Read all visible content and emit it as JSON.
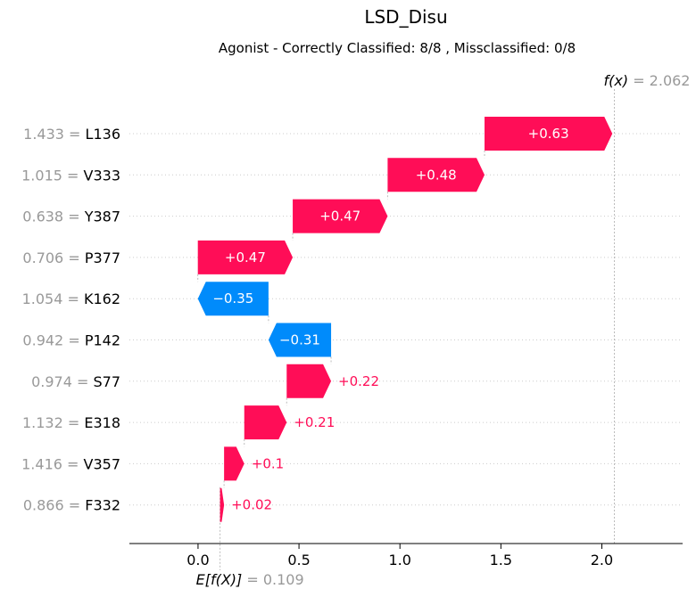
{
  "chart_data": {
    "type": "waterfall",
    "title": "LSD_Disu",
    "subtitle": "Agonist - Correctly Classified: 8/8 , Missclassified: 0/8",
    "base_value": 0.109,
    "base_value_label": "E[f(X)]",
    "base_value_text": "= 0.109",
    "output_value": 2.062,
    "output_value_label": "f(x)",
    "output_value_text": "= 2.062",
    "xlim": [
      -0.34,
      2.4
    ],
    "xticks": [
      0.0,
      0.5,
      1.0,
      1.5,
      2.0
    ],
    "xtick_labels": [
      "0.0",
      "0.5",
      "1.0",
      "1.5",
      "2.0"
    ],
    "features": [
      {
        "value": "1.433 =",
        "name": "L136",
        "contribution": 0.633,
        "label": "+0.63"
      },
      {
        "value": "1.015 =",
        "name": "V333",
        "contribution": 0.48,
        "label": "+0.48"
      },
      {
        "value": "0.638 =",
        "name": "Y387",
        "contribution": 0.47,
        "label": "+0.47"
      },
      {
        "value": "0.706 =",
        "name": "P377",
        "contribution": 0.47,
        "label": "+0.47"
      },
      {
        "value": "1.054 =",
        "name": "K162",
        "contribution": -0.35,
        "label": "−0.35"
      },
      {
        "value": "0.942 =",
        "name": "P142",
        "contribution": -0.31,
        "label": "−0.31"
      },
      {
        "value": "0.974 =",
        "name": "S77",
        "contribution": 0.22,
        "label": "+0.22"
      },
      {
        "value": "1.132 =",
        "name": "E318",
        "contribution": 0.21,
        "label": "+0.21"
      },
      {
        "value": "1.416 =",
        "name": "V357",
        "contribution": 0.1,
        "label": "+0.1"
      },
      {
        "value": "0.866 =",
        "name": "F332",
        "contribution": 0.02,
        "label": "+0.02"
      }
    ],
    "colors": {
      "positive": "#ff0d57",
      "negative": "#008bfb",
      "gridline": "#cccccc",
      "axis": "#000000"
    }
  }
}
